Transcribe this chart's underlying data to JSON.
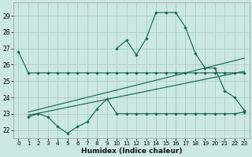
{
  "xlabel": "Humidex (Indice chaleur)",
  "bg_color": "#cce8e4",
  "grid_color": "#aacccc",
  "line_color": "#1a6655",
  "xlim": [
    -0.5,
    23.5
  ],
  "ylim": [
    21.5,
    29.8
  ],
  "xticks": [
    0,
    1,
    2,
    3,
    4,
    5,
    6,
    7,
    8,
    9,
    10,
    11,
    12,
    13,
    14,
    15,
    16,
    17,
    18,
    19,
    20,
    21,
    22,
    23
  ],
  "yticks": [
    22,
    23,
    24,
    25,
    26,
    27,
    28,
    29
  ],
  "line1_x": [
    0,
    1,
    2,
    3,
    4,
    5,
    6,
    7,
    8,
    9,
    10,
    11,
    12,
    13,
    14,
    15,
    16,
    17,
    18,
    19,
    20,
    21,
    22,
    23
  ],
  "line1_y": [
    26.8,
    25.5,
    25.5,
    25.5,
    25.5,
    25.5,
    25.5,
    25.5,
    25.5,
    25.5,
    25.5,
    25.5,
    25.5,
    25.5,
    25.5,
    25.5,
    25.5,
    25.5,
    25.5,
    25.5,
    25.5,
    25.5,
    25.5,
    25.5
  ],
  "line2_x": [
    1,
    2,
    3,
    4,
    5,
    6,
    7,
    8,
    9,
    10,
    11,
    12,
    13,
    14,
    15,
    16,
    17,
    18,
    19,
    20,
    21,
    22,
    23
  ],
  "line2_y": [
    22.8,
    23.0,
    22.8,
    22.2,
    21.8,
    22.2,
    22.5,
    23.3,
    23.9,
    23.0,
    23.0,
    23.0,
    23.0,
    23.0,
    23.0,
    23.0,
    23.0,
    23.0,
    23.0,
    23.0,
    23.0,
    23.0,
    23.1
  ],
  "line3_x": [
    1,
    23
  ],
  "line3_y": [
    22.9,
    25.6
  ],
  "line4_x": [
    1,
    23
  ],
  "line4_y": [
    23.1,
    26.4
  ],
  "line5_x": [
    10,
    11,
    12,
    13,
    14,
    15,
    16,
    17,
    18,
    19,
    20,
    21,
    22,
    23
  ],
  "line5_y": [
    27.0,
    27.5,
    26.6,
    27.6,
    29.2,
    29.2,
    29.2,
    28.3,
    26.7,
    25.8,
    25.8,
    24.4,
    24.0,
    23.2
  ]
}
